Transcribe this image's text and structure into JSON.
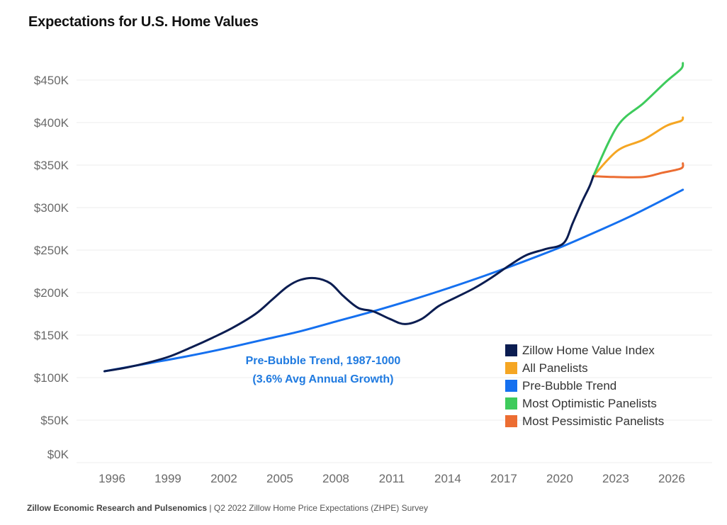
{
  "header": {
    "title": "Expectations for U.S. Home Values"
  },
  "footer": {
    "source_bold": "Zillow Economic Research and Pulsenomics",
    "source_rest": " | Q2 2022 Zillow Home Price Expectations (ZHPE) Survey"
  },
  "colors": {
    "zhvi": "#0b1d51",
    "all_panelists": "#f5a623",
    "pre_bubble_trend": "#1570ef",
    "most_optimistic": "#3ecb5c",
    "most_pessimistic": "#ec6d32",
    "annotation": "#1f7ae0",
    "grid": "#ececec"
  },
  "chart_data": {
    "type": "line",
    "title": "Expectations for U.S. Home Values",
    "xlabel": "",
    "ylabel": "",
    "ylim": [
      0,
      450
    ],
    "y_unit": "$K",
    "grid": true,
    "legend_position": "bottom-right",
    "yticks": [
      {
        "value": 0,
        "label": "$0K"
      },
      {
        "value": 50,
        "label": "$50K"
      },
      {
        "value": 100,
        "label": "$100K"
      },
      {
        "value": 150,
        "label": "$150K"
      },
      {
        "value": 200,
        "label": "$200K"
      },
      {
        "value": 250,
        "label": "$250K"
      },
      {
        "value": 300,
        "label": "$300K"
      },
      {
        "value": 350,
        "label": "$350K"
      },
      {
        "value": 400,
        "label": "$400K"
      },
      {
        "value": 450,
        "label": "$450K"
      }
    ],
    "xticks": [
      "1996",
      "1999",
      "2002",
      "2005",
      "2008",
      "2011",
      "2014",
      "2017",
      "2020",
      "2023",
      "2026"
    ],
    "annotation": {
      "line1": "Pre-Bubble Trend, 1987-1000",
      "line2": "(3.6% Avg Annual Growth)",
      "anchor": {
        "x": 2008,
        "y": 100
      }
    },
    "series": [
      {
        "key": "pre_bubble_trend",
        "name": "Pre-Bubble Trend",
        "growth_rate": 0.036,
        "x": [
          1995.6,
          1998.0,
          2000.0,
          2002.0,
          2004.0,
          2006.0,
          2008.0,
          2010.0,
          2012.0,
          2014.0,
          2016.0,
          2018.0,
          2020.0,
          2022.0,
          2024.0,
          2026.6
        ],
        "values": [
          107.5,
          117,
          125,
          134,
          144,
          154,
          166,
          178,
          191,
          205,
          220,
          236,
          253,
          272,
          292,
          321
        ]
      },
      {
        "key": "zhvi",
        "name": "Zillow Home Value Index",
        "x": [
          1995.6,
          1996.8,
          1998.0,
          1999.1,
          2000.3,
          2001.4,
          2002.5,
          2003.7,
          2004.6,
          2005.4,
          2006.1,
          2006.9,
          2007.7,
          2008.4,
          2009.2,
          2010.0,
          2010.9,
          2011.7,
          2012.6,
          2013.5,
          2014.4,
          2015.4,
          2016.3,
          2017.3,
          2018.2,
          2019.2,
          2020.2,
          2020.7,
          2021.2,
          2021.6,
          2021.8
        ],
        "values": [
          107.5,
          112,
          118,
          125,
          136,
          147,
          159,
          175,
          192,
          207,
          215,
          217,
          211,
          196,
          182,
          178,
          169,
          163,
          169,
          184,
          194,
          205,
          217,
          232,
          244,
          251,
          258,
          282,
          307,
          325,
          337
        ]
      },
      {
        "key": "all_panelists",
        "name": "All Panelists",
        "x": [
          2021.8,
          2023.1,
          2024.5,
          2025.7,
          2026.5,
          2026.6
        ],
        "values": [
          337,
          367,
          380,
          396,
          402,
          406
        ]
      },
      {
        "key": "most_optimistic",
        "name": "Most Optimistic Panelists",
        "x": [
          2021.8,
          2023.1,
          2024.5,
          2025.7,
          2026.5,
          2026.6
        ],
        "values": [
          337,
          396,
          423,
          448,
          463,
          470
        ]
      },
      {
        "key": "most_pessimistic",
        "name": "Most Pessimistic Panelists",
        "x": [
          2021.8,
          2022.9,
          2024.5,
          2025.5,
          2026.5,
          2026.6
        ],
        "values": [
          337,
          336,
          336,
          341,
          346,
          352
        ]
      }
    ],
    "legend": [
      {
        "key": "zhvi",
        "label": "Zillow Home Value Index"
      },
      {
        "key": "all_panelists",
        "label": "All Panelists"
      },
      {
        "key": "pre_bubble_trend",
        "label": "Pre-Bubble Trend"
      },
      {
        "key": "most_optimistic",
        "label": "Most Optimistic Panelists"
      },
      {
        "key": "most_pessimistic",
        "label": "Most Pessimistic Panelists"
      }
    ]
  }
}
